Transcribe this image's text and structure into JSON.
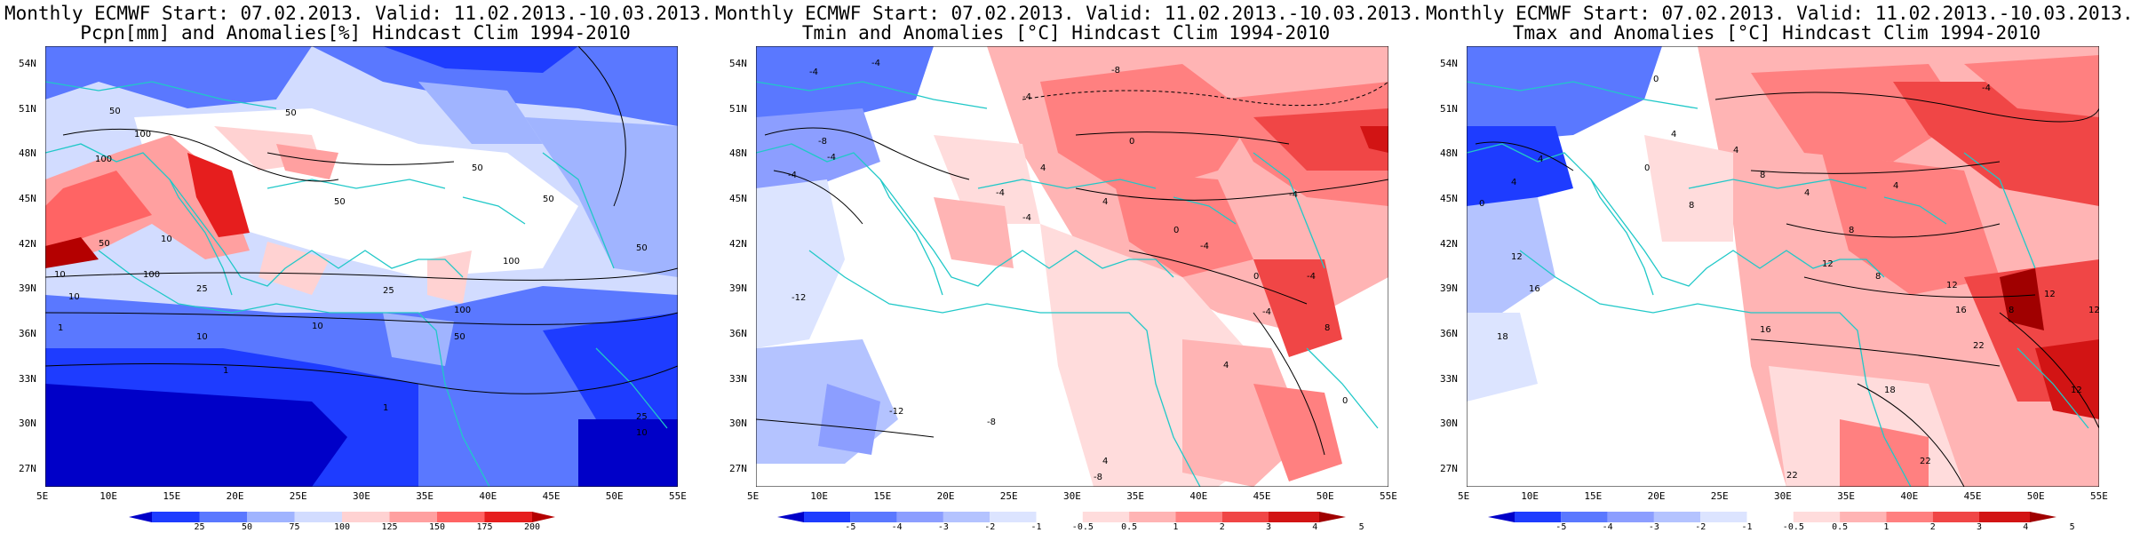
{
  "panels": [
    {
      "title_line1": "Monthly ECMWF Start: 07.02.2013. Valid: 11.02.2013.-10.03.2013.",
      "title_line2": "Pcpn[mm] and Anomalies[%] Hindcast Clim 1994-2010",
      "colorbar_labels": [
        "25",
        "50",
        "75",
        "100",
        "125",
        "150",
        "175",
        "200"
      ],
      "contour_labels": [
        "100",
        "50",
        "100",
        "50",
        "50",
        "100",
        "10",
        "50",
        "50",
        "50",
        "100",
        "10",
        "25",
        "25",
        "10",
        "1",
        "10",
        "1",
        "1",
        "25",
        "10",
        "100",
        "50",
        "10",
        "50"
      ]
    },
    {
      "title_line1": "Monthly ECMWF Start: 07.02.2013. Valid: 11.02.2013.-10.03.2013.",
      "title_line2": "Tmin and Anomalies [°C] Hindcast Clim 1994-2010",
      "colorbar_labels": [
        "-5",
        "-4",
        "-3",
        "-2",
        "-1",
        "-0.5",
        "0.5",
        "1",
        "2",
        "3",
        "4",
        "5"
      ],
      "contour_labels": [
        "-4",
        "-4",
        "-8",
        "-4",
        "-8",
        "-4",
        "-4",
        "0",
        "4",
        "-4",
        "4",
        "-4",
        "0",
        "-4",
        "-4",
        "-4",
        "0",
        "-12",
        "-12",
        "-8",
        "-8",
        "-4",
        "4",
        "8",
        "4",
        "0"
      ]
    },
    {
      "title_line1": "Monthly ECMWF Start: 07.02.2013. Valid: 11.02.2013.-10.03.2013.",
      "title_line2": "Tmax and Anomalies [°C] Hindcast Clim 1994-2010",
      "colorbar_labels": [
        "-5",
        "-4",
        "-3",
        "-2",
        "-1",
        "-0.5",
        "0.5",
        "1",
        "2",
        "3",
        "4",
        "5"
      ],
      "contour_labels": [
        "0",
        "-4",
        "4",
        "4",
        "8",
        "4",
        "0",
        "8",
        "12",
        "8",
        "4",
        "12",
        "8",
        "12",
        "12",
        "16",
        "18",
        "16",
        "18",
        "22",
        "22",
        "8",
        "12",
        "12",
        "16",
        "22",
        "4",
        "4",
        "0"
      ]
    }
  ],
  "map_axes": {
    "lon_labels": [
      "5E",
      "10E",
      "15E",
      "20E",
      "25E",
      "30E",
      "35E",
      "40E",
      "45E",
      "50E",
      "55E"
    ],
    "lat_labels": [
      "54N",
      "51N",
      "48N",
      "45N",
      "42N",
      "39N",
      "36N",
      "33N",
      "30N",
      "27N"
    ]
  },
  "colors": {
    "pcpn_scale": [
      "#0000c8",
      "#1e3cff",
      "#5a78ff",
      "#a0b4ff",
      "#d2dcff",
      "#ffffff",
      "#ffd2d2",
      "#ffa0a0",
      "#ff6464",
      "#e61e1e",
      "#b40000"
    ],
    "temp_scale": [
      "#0000c8",
      "#1e3cff",
      "#5a78ff",
      "#8c9eff",
      "#b4c3ff",
      "#dce4ff",
      "#ffffff",
      "#ffdcdc",
      "#ffb4b4",
      "#ff8080",
      "#f04646",
      "#d21414",
      "#a00000"
    ],
    "coast": "#20c8c8",
    "contour": "#000000"
  }
}
